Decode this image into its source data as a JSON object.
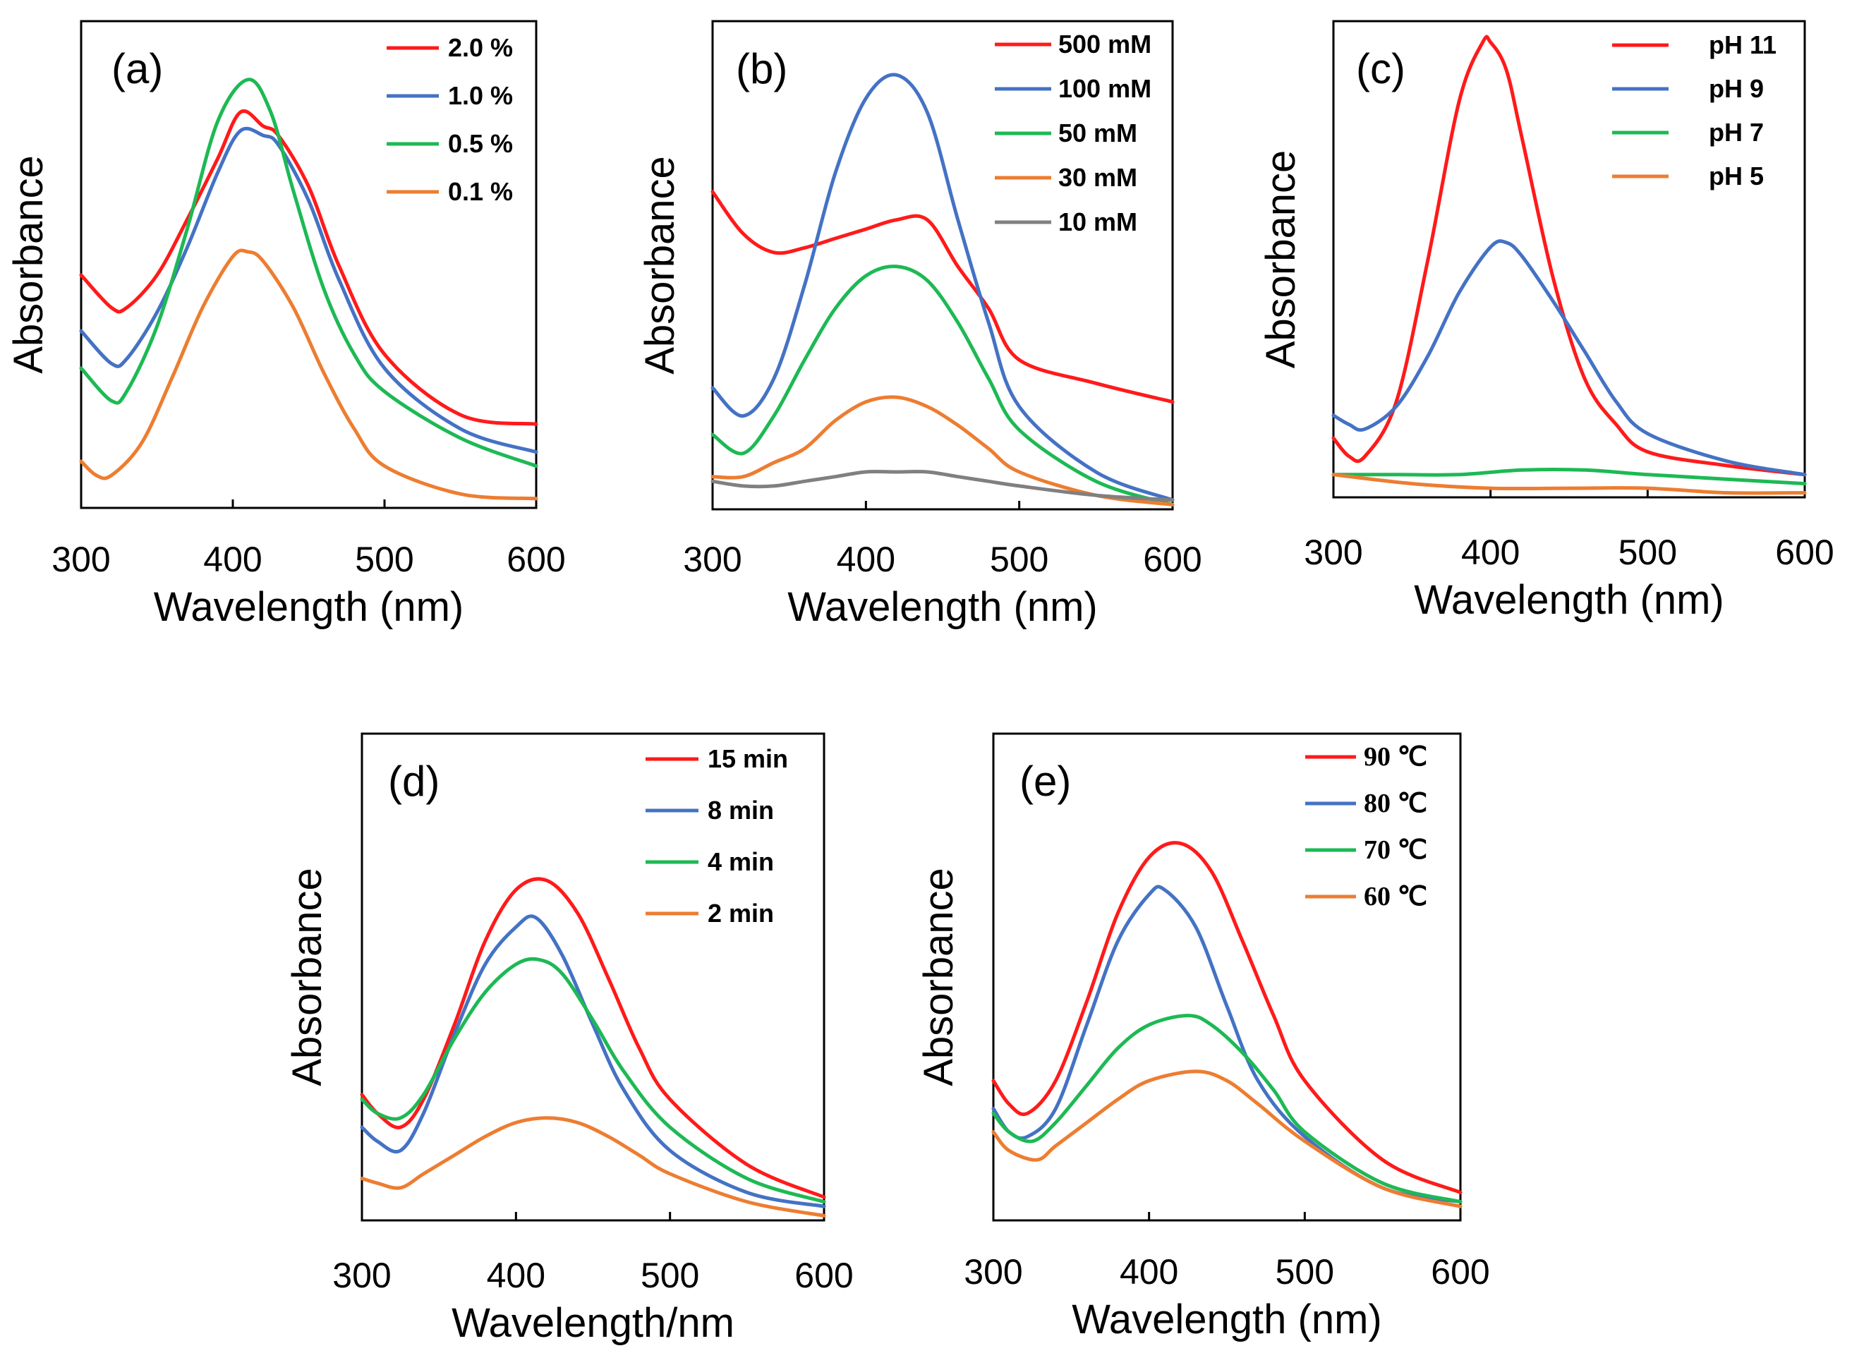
{
  "colors": {
    "red": "#ff1a1a",
    "blue": "#4472c4",
    "green": "#1db954",
    "orange": "#ed7d31",
    "gray": "#808080"
  },
  "chart_data": [
    {
      "panel": "(a)",
      "type": "line",
      "xlabel": "Wavelength (nm)",
      "ylabel": "Absorbance",
      "xlim": [
        300,
        600
      ],
      "ylim": [
        0,
        1
      ],
      "xticks": [
        "300",
        "400",
        "500",
        "600"
      ],
      "legend_position": "top-right",
      "series": [
        {
          "name": "2.0 %",
          "color": "red",
          "x": [
            300,
            320,
            330,
            350,
            370,
            390,
            405,
            420,
            430,
            450,
            470,
            500,
            550,
            600
          ],
          "y": [
            0.5,
            0.43,
            0.43,
            0.5,
            0.62,
            0.75,
            0.85,
            0.82,
            0.8,
            0.69,
            0.52,
            0.33,
            0.2,
            0.18
          ]
        },
        {
          "name": "1.0 %",
          "color": "blue",
          "x": [
            300,
            320,
            330,
            350,
            370,
            390,
            405,
            420,
            430,
            450,
            470,
            500,
            550,
            600
          ],
          "y": [
            0.38,
            0.31,
            0.32,
            0.42,
            0.56,
            0.72,
            0.81,
            0.8,
            0.78,
            0.66,
            0.49,
            0.3,
            0.17,
            0.12
          ]
        },
        {
          "name": "0.5 %",
          "color": "green",
          "x": [
            300,
            320,
            330,
            350,
            370,
            390,
            410,
            425,
            440,
            460,
            480,
            500,
            550,
            600
          ],
          "y": [
            0.3,
            0.23,
            0.25,
            0.39,
            0.6,
            0.83,
            0.92,
            0.85,
            0.68,
            0.47,
            0.33,
            0.25,
            0.15,
            0.09
          ]
        },
        {
          "name": "0.1 %",
          "color": "orange",
          "x": [
            300,
            310,
            320,
            340,
            360,
            380,
            400,
            410,
            420,
            440,
            460,
            480,
            500,
            550,
            600
          ],
          "y": [
            0.1,
            0.07,
            0.07,
            0.14,
            0.28,
            0.43,
            0.54,
            0.55,
            0.53,
            0.43,
            0.29,
            0.17,
            0.09,
            0.03,
            0.02
          ]
        }
      ]
    },
    {
      "panel": "(b)",
      "type": "line",
      "xlabel": "Wavelength (nm)",
      "ylabel": "Absorbance",
      "xlim": [
        300,
        600
      ],
      "ylim": [
        0,
        1
      ],
      "xticks": [
        "300",
        "400",
        "500",
        "600"
      ],
      "legend_position": "top-right",
      "series": [
        {
          "name": "500 mM",
          "color": "red",
          "x": [
            300,
            320,
            340,
            360,
            380,
            400,
            420,
            440,
            460,
            480,
            500,
            550,
            600
          ],
          "y": [
            0.68,
            0.59,
            0.55,
            0.56,
            0.58,
            0.6,
            0.62,
            0.62,
            0.52,
            0.43,
            0.32,
            0.27,
            0.23
          ]
        },
        {
          "name": "100 mM",
          "color": "blue",
          "x": [
            300,
            320,
            340,
            360,
            380,
            400,
            420,
            440,
            460,
            480,
            500,
            550,
            600
          ],
          "y": [
            0.26,
            0.2,
            0.28,
            0.48,
            0.72,
            0.88,
            0.93,
            0.85,
            0.62,
            0.4,
            0.22,
            0.08,
            0.02
          ]
        },
        {
          "name": "50 mM",
          "color": "green",
          "x": [
            300,
            320,
            340,
            360,
            380,
            400,
            420,
            440,
            460,
            480,
            500,
            550,
            600
          ],
          "y": [
            0.16,
            0.12,
            0.2,
            0.32,
            0.43,
            0.5,
            0.52,
            0.49,
            0.4,
            0.28,
            0.17,
            0.06,
            0.01
          ]
        },
        {
          "name": "30 mM",
          "color": "orange",
          "x": [
            300,
            320,
            340,
            360,
            380,
            400,
            420,
            440,
            460,
            480,
            500,
            550,
            600
          ],
          "y": [
            0.07,
            0.07,
            0.1,
            0.13,
            0.19,
            0.23,
            0.24,
            0.22,
            0.18,
            0.13,
            0.08,
            0.03,
            0.01
          ]
        },
        {
          "name": "10 mM",
          "color": "gray",
          "x": [
            300,
            320,
            340,
            360,
            380,
            400,
            420,
            440,
            460,
            480,
            500,
            550,
            600
          ],
          "y": [
            0.06,
            0.05,
            0.05,
            0.06,
            0.07,
            0.08,
            0.08,
            0.08,
            0.07,
            0.06,
            0.05,
            0.03,
            0.02
          ]
        }
      ]
    },
    {
      "panel": "(c)",
      "type": "line",
      "xlabel": "Wavelength (nm)",
      "ylabel": "Absorbance",
      "xlim": [
        300,
        600
      ],
      "ylim": [
        0,
        1
      ],
      "xticks": [
        "300",
        "400",
        "500",
        "600"
      ],
      "legend_position": "top-right",
      "series": [
        {
          "name": "pH 11",
          "color": "red",
          "x": [
            300,
            310,
            320,
            340,
            360,
            380,
            395,
            400,
            410,
            420,
            440,
            460,
            480,
            500,
            550,
            600
          ],
          "y": [
            0.13,
            0.09,
            0.09,
            0.21,
            0.52,
            0.87,
            1.0,
            1.0,
            0.94,
            0.79,
            0.48,
            0.26,
            0.16,
            0.1,
            0.07,
            0.05
          ]
        },
        {
          "name": "pH 9",
          "color": "blue",
          "x": [
            300,
            310,
            320,
            340,
            360,
            380,
            400,
            410,
            420,
            440,
            460,
            480,
            500,
            550,
            600
          ],
          "y": [
            0.18,
            0.16,
            0.15,
            0.2,
            0.31,
            0.45,
            0.55,
            0.56,
            0.53,
            0.43,
            0.32,
            0.21,
            0.14,
            0.08,
            0.05
          ]
        },
        {
          "name": "pH 7",
          "color": "green",
          "x": [
            300,
            340,
            380,
            420,
            460,
            500,
            550,
            600
          ],
          "y": [
            0.05,
            0.05,
            0.05,
            0.06,
            0.06,
            0.05,
            0.04,
            0.03
          ]
        },
        {
          "name": "pH 5",
          "color": "orange",
          "x": [
            300,
            350,
            400,
            450,
            500,
            550,
            600
          ],
          "y": [
            0.05,
            0.03,
            0.02,
            0.02,
            0.02,
            0.01,
            0.01
          ]
        }
      ]
    },
    {
      "panel": "(d)",
      "type": "line",
      "xlabel": "Wavelength/nm",
      "ylabel": "Absorbance",
      "xlim": [
        300,
        600
      ],
      "ylim": [
        0,
        1
      ],
      "xticks": [
        "300",
        "400",
        "500",
        "600"
      ],
      "legend_position": "top-right",
      "series": [
        {
          "name": "15 min",
          "color": "red",
          "x": [
            300,
            310,
            325,
            340,
            360,
            380,
            400,
            420,
            440,
            460,
            480,
            500,
            550,
            600
          ],
          "y": [
            0.27,
            0.23,
            0.2,
            0.26,
            0.42,
            0.6,
            0.71,
            0.73,
            0.66,
            0.52,
            0.37,
            0.26,
            0.12,
            0.05
          ]
        },
        {
          "name": "8 min",
          "color": "blue",
          "x": [
            300,
            310,
            325,
            340,
            360,
            380,
            400,
            413,
            430,
            450,
            470,
            500,
            550,
            600
          ],
          "y": [
            0.2,
            0.17,
            0.15,
            0.23,
            0.4,
            0.55,
            0.63,
            0.65,
            0.57,
            0.42,
            0.28,
            0.15,
            0.06,
            0.03
          ]
        },
        {
          "name": "4 min",
          "color": "green",
          "x": [
            300,
            310,
            325,
            340,
            360,
            380,
            400,
            415,
            430,
            450,
            470,
            500,
            550,
            600
          ],
          "y": [
            0.26,
            0.23,
            0.22,
            0.27,
            0.39,
            0.49,
            0.55,
            0.56,
            0.53,
            0.43,
            0.32,
            0.2,
            0.09,
            0.04
          ]
        },
        {
          "name": "2 min",
          "color": "orange",
          "x": [
            300,
            310,
            325,
            340,
            360,
            380,
            400,
            420,
            440,
            460,
            480,
            500,
            550,
            600
          ],
          "y": [
            0.09,
            0.08,
            0.07,
            0.1,
            0.14,
            0.18,
            0.21,
            0.22,
            0.21,
            0.18,
            0.14,
            0.1,
            0.04,
            0.01
          ]
        }
      ]
    },
    {
      "panel": "(e)",
      "type": "line",
      "xlabel": "Wavelength (nm)",
      "ylabel": "Absorbance",
      "xlim": [
        300,
        600
      ],
      "ylim": [
        0,
        1
      ],
      "xticks": [
        "300",
        "400",
        "500",
        "600"
      ],
      "legend_position": "top-right",
      "series": [
        {
          "name": "90 ℃",
          "color": "red",
          "x": [
            300,
            310,
            322,
            340,
            360,
            380,
            400,
            420,
            440,
            460,
            480,
            500,
            550,
            600
          ],
          "y": [
            0.3,
            0.25,
            0.23,
            0.3,
            0.47,
            0.66,
            0.78,
            0.81,
            0.75,
            0.6,
            0.44,
            0.3,
            0.13,
            0.06
          ]
        },
        {
          "name": "80 ℃",
          "color": "blue",
          "x": [
            300,
            310,
            322,
            340,
            360,
            380,
            400,
            410,
            430,
            450,
            470,
            500,
            550,
            600
          ],
          "y": [
            0.24,
            0.19,
            0.18,
            0.24,
            0.42,
            0.6,
            0.7,
            0.71,
            0.63,
            0.46,
            0.3,
            0.18,
            0.07,
            0.04
          ]
        },
        {
          "name": "70 ℃",
          "color": "green",
          "x": [
            300,
            310,
            325,
            340,
            360,
            380,
            400,
            425,
            440,
            460,
            480,
            500,
            550,
            600
          ],
          "y": [
            0.23,
            0.19,
            0.17,
            0.21,
            0.29,
            0.37,
            0.42,
            0.44,
            0.42,
            0.36,
            0.28,
            0.19,
            0.08,
            0.04
          ]
        },
        {
          "name": "60 ℃",
          "color": "orange",
          "x": [
            300,
            310,
            328,
            340,
            360,
            380,
            400,
            430,
            450,
            470,
            500,
            550,
            600
          ],
          "y": [
            0.19,
            0.15,
            0.13,
            0.16,
            0.21,
            0.26,
            0.3,
            0.32,
            0.3,
            0.25,
            0.17,
            0.07,
            0.03
          ]
        }
      ]
    }
  ]
}
